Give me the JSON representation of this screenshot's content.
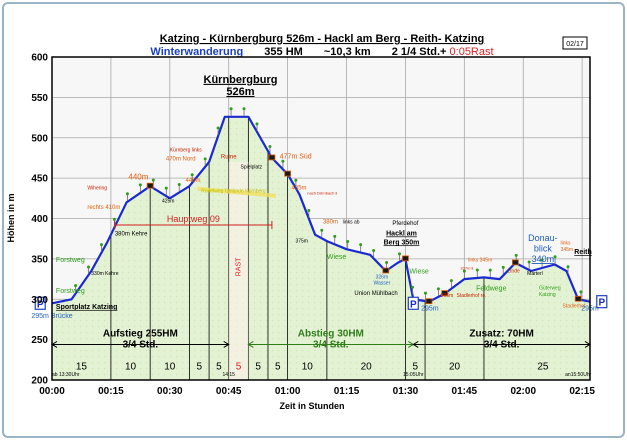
{
  "chart_data": {
    "type": "area",
    "title": "Katzing - Kürnbergburg  526m  - Hackl  am Berg  - Reith- Katzing",
    "subtitle": {
      "name": "Winterwanderung",
      "hm": "355 HM",
      "distance": "~10,3 km",
      "duration": "2  1/4 Std.+",
      "rest": " 0:05Rast"
    },
    "badge": "02/17",
    "ylabel": "Höhen in m",
    "xlabel": "Zeit in  Stunden",
    "ylim": [
      200,
      600
    ],
    "xlim_minutes": [
      0,
      137
    ],
    "y_ticks": [
      200,
      250,
      300,
      350,
      400,
      450,
      500,
      550,
      600
    ],
    "x_ticks": [
      {
        "min": 0,
        "label": "00:00"
      },
      {
        "min": 15,
        "label": "00:15"
      },
      {
        "min": 30,
        "label": "00:30"
      },
      {
        "min": 45,
        "label": "00:45"
      },
      {
        "min": 60,
        "label": "01:00"
      },
      {
        "min": 75,
        "label": "01:15"
      },
      {
        "min": 90,
        "label": "01:30"
      },
      {
        "min": 105,
        "label": "01:45"
      },
      {
        "min": 120,
        "label": "02:00"
      },
      {
        "min": 135,
        "label": "02:15"
      }
    ],
    "profile": [
      {
        "t": 0,
        "h": 295
      },
      {
        "t": 5,
        "h": 300
      },
      {
        "t": 10,
        "h": 335
      },
      {
        "t": 14,
        "h": 370
      },
      {
        "t": 19,
        "h": 420
      },
      {
        "t": 25,
        "h": 440
      },
      {
        "t": 30,
        "h": 425
      },
      {
        "t": 35,
        "h": 440
      },
      {
        "t": 40,
        "h": 470
      },
      {
        "t": 44,
        "h": 526
      },
      {
        "t": 50,
        "h": 526
      },
      {
        "t": 56,
        "h": 475
      },
      {
        "t": 60,
        "h": 455
      },
      {
        "t": 63,
        "h": 430
      },
      {
        "t": 67,
        "h": 380
      },
      {
        "t": 70,
        "h": 372
      },
      {
        "t": 75,
        "h": 362
      },
      {
        "t": 81,
        "h": 355
      },
      {
        "t": 85,
        "h": 335
      },
      {
        "t": 88,
        "h": 345
      },
      {
        "t": 90,
        "h": 350
      },
      {
        "t": 92,
        "h": 300
      },
      {
        "t": 96,
        "h": 297
      },
      {
        "t": 100,
        "h": 307
      },
      {
        "t": 105,
        "h": 325
      },
      {
        "t": 110,
        "h": 327
      },
      {
        "t": 114,
        "h": 325
      },
      {
        "t": 118,
        "h": 345
      },
      {
        "t": 122,
        "h": 335
      },
      {
        "t": 128,
        "h": 343
      },
      {
        "t": 131,
        "h": 335
      },
      {
        "t": 134,
        "h": 300
      },
      {
        "t": 137,
        "h": 297
      }
    ],
    "segment_dividers": [
      0,
      15,
      25,
      35,
      40,
      45,
      50,
      55,
      60,
      70,
      90,
      95,
      110,
      137
    ],
    "segment_durations": [
      {
        "t": 7.5,
        "label": "15",
        "rest": false
      },
      {
        "t": 20,
        "label": "10",
        "rest": false
      },
      {
        "t": 30,
        "label": "10",
        "rest": false
      },
      {
        "t": 37.5,
        "label": "5",
        "rest": false
      },
      {
        "t": 42.5,
        "label": "5",
        "rest": false
      },
      {
        "t": 47.5,
        "label": "5",
        "rest": true
      },
      {
        "t": 52.5,
        "label": "5",
        "rest": false
      },
      {
        "t": 57.5,
        "label": "5",
        "rest": false
      },
      {
        "t": 65,
        "label": "10",
        "rest": false
      },
      {
        "t": 80,
        "label": "20",
        "rest": false
      },
      {
        "t": 92.5,
        "label": "5",
        "rest": false
      },
      {
        "t": 102.5,
        "label": "20",
        "rest": false
      },
      {
        "t": 125,
        "label": "25",
        "rest": false
      }
    ],
    "phases": [
      {
        "start": 0,
        "end": 45,
        "label": "Aufstieg 255HM",
        "sub": "3/4 Std.",
        "color": "#000000"
      },
      {
        "start": 50,
        "end": 92,
        "label": "Abstieg 30HM",
        "sub": "3/4 Std.",
        "color": "#2e7d1a"
      },
      {
        "start": 92,
        "end": 137,
        "label": "Zusatz: 70HM",
        "sub": "3/4 Std.",
        "color": "#000000"
      }
    ],
    "hauptweg": {
      "start": 16,
      "end": 56,
      "h": 392,
      "label": "Hauptweg 09"
    },
    "annotations": [
      {
        "t": 48,
        "h": 568,
        "text": "Kürnbergburg",
        "color": "#000000",
        "size": 11,
        "weight": "bold",
        "anchor": "middle",
        "underline": true
      },
      {
        "t": 48,
        "h": 553,
        "text": "526m",
        "color": "#000000",
        "size": 11,
        "weight": "bold",
        "anchor": "middle",
        "underline": true
      },
      {
        "t": 22,
        "h": 448,
        "text": "440m",
        "color": "#e06010",
        "size": 8,
        "weight": "normal",
        "anchor": "middle"
      },
      {
        "t": 9,
        "h": 436,
        "text": "Wihering",
        "color": "#cc2200",
        "size": 5,
        "weight": "normal",
        "anchor": "start"
      },
      {
        "t": 9,
        "h": 412,
        "text": "rechts 410m",
        "color": "#e06010",
        "size": 6,
        "weight": "normal",
        "anchor": "start"
      },
      {
        "t": 16,
        "h": 379,
        "text": "380m Kehre",
        "color": "#000000",
        "size": 6,
        "weight": "normal",
        "anchor": "start"
      },
      {
        "t": 10,
        "h": 330,
        "text": "330m Kehre",
        "color": "#000000",
        "size": 5,
        "weight": "normal",
        "anchor": "start"
      },
      {
        "t": 28,
        "h": 420,
        "text": "425m",
        "color": "#000000",
        "size": 5,
        "weight": "normal",
        "anchor": "start"
      },
      {
        "t": 34,
        "h": 445,
        "text": "440m",
        "color": "#e06010",
        "size": 6,
        "weight": "normal",
        "anchor": "start"
      },
      {
        "t": 30,
        "h": 483,
        "text": "Kürnberg links",
        "color": "#cc2200",
        "size": 5,
        "weight": "normal",
        "anchor": "start"
      },
      {
        "t": 29,
        "h": 472,
        "text": "470m Nord",
        "color": "#e06010",
        "size": 6,
        "weight": "normal",
        "anchor": "start"
      },
      {
        "t": 45,
        "h": 474,
        "text": "Ruine",
        "color": "#cc2200",
        "size": 6,
        "weight": "normal",
        "anchor": "middle"
      },
      {
        "t": 48,
        "h": 462,
        "text": "Spielplatz",
        "color": "#000000",
        "size": 5,
        "weight": "normal",
        "anchor": "start"
      },
      {
        "t": 58,
        "h": 474,
        "text": "477m Süd",
        "color": "#e06010",
        "size": 7,
        "weight": "normal",
        "anchor": "start"
      },
      {
        "t": 38,
        "h": 432,
        "text": "Rodelweg Gelände Kürnberg",
        "color": "#c0c000",
        "size": 5,
        "weight": "normal",
        "anchor": "start"
      },
      {
        "t": 61,
        "h": 436,
        "text": "435m",
        "color": "#e06010",
        "size": 6,
        "weight": "normal",
        "anchor": "start"
      },
      {
        "t": 65,
        "h": 430,
        "text": "nach Dörnbach li",
        "color": "#cc2200",
        "size": 4,
        "weight": "normal",
        "anchor": "start"
      },
      {
        "t": 62,
        "h": 370,
        "text": "375m",
        "color": "#000000",
        "size": 5,
        "weight": "normal",
        "anchor": "start"
      },
      {
        "t": 69,
        "h": 394,
        "text": "380m",
        "color": "#e06010",
        "size": 6,
        "weight": "normal",
        "anchor": "start"
      },
      {
        "t": 74,
        "h": 394,
        "text": "links ab",
        "color": "#000000",
        "size": 5,
        "weight": "normal",
        "anchor": "start"
      },
      {
        "t": 70,
        "h": 350,
        "text": "Wiese",
        "color": "#2e9e1a",
        "size": 7,
        "weight": "normal",
        "anchor": "start"
      },
      {
        "t": 90,
        "h": 392,
        "text": "Pferdehof",
        "color": "#000000",
        "size": 6,
        "weight": "normal",
        "anchor": "middle"
      },
      {
        "t": 89,
        "h": 379,
        "text": "Hackl am",
        "color": "#000000",
        "size": 7,
        "weight": "bold",
        "anchor": "middle",
        "underline": true
      },
      {
        "t": 89,
        "h": 368,
        "text": "Berg 350m",
        "color": "#000000",
        "size": 7,
        "weight": "bold",
        "anchor": "middle",
        "underline": true
      },
      {
        "t": 84,
        "h": 326,
        "text": "326m",
        "color": "#2060c0",
        "size": 5,
        "weight": "normal",
        "anchor": "middle"
      },
      {
        "t": 84,
        "h": 318,
        "text": "Wasser",
        "color": "#2060c0",
        "size": 5,
        "weight": "normal",
        "anchor": "middle"
      },
      {
        "t": 91,
        "h": 332,
        "text": "Wiese",
        "color": "#2e9e1a",
        "size": 7,
        "weight": "normal",
        "anchor": "start"
      },
      {
        "t": 77,
        "h": 305,
        "text": "Union Mühlbach",
        "color": "#000000",
        "size": 6,
        "weight": "normal",
        "anchor": "start"
      },
      {
        "t": 99,
        "h": 303,
        "text": "305m",
        "color": "#cc2200",
        "size": 5,
        "weight": "normal",
        "anchor": "start"
      },
      {
        "t": 103,
        "h": 303,
        "text": "Stadlerhof re.",
        "color": "#cc2200",
        "size": 5,
        "weight": "normal",
        "anchor": "start"
      },
      {
        "t": 106,
        "h": 347,
        "text": "links 345m",
        "color": "#e06010",
        "size": 5,
        "weight": "normal",
        "anchor": "start"
      },
      {
        "t": 104,
        "h": 337,
        "text": "337m li.",
        "color": "#cc2200",
        "size": 4,
        "weight": "normal",
        "anchor": "start"
      },
      {
        "t": 108,
        "h": 311,
        "text": "Feldwege",
        "color": "#2e9e1a",
        "size": 7,
        "weight": "normal",
        "anchor": "start"
      },
      {
        "t": 116,
        "h": 333,
        "text": "Linde",
        "color": "#cc2200",
        "size": 5,
        "weight": "normal",
        "anchor": "start"
      },
      {
        "t": 121,
        "h": 330,
        "text": "Marterl",
        "color": "#000000",
        "size": 5,
        "weight": "normal",
        "anchor": "start"
      },
      {
        "t": 125,
        "h": 372,
        "text": "Donau-",
        "color": "#2060c0",
        "size": 9,
        "weight": "normal",
        "anchor": "middle"
      },
      {
        "t": 125,
        "h": 359,
        "text": "blick",
        "color": "#2060c0",
        "size": 9,
        "weight": "normal",
        "anchor": "middle"
      },
      {
        "t": 125,
        "h": 346,
        "text": "340m",
        "color": "#2060c0",
        "size": 9,
        "weight": "normal",
        "anchor": "middle",
        "underline": true
      },
      {
        "t": 129.5,
        "h": 368,
        "text": "links",
        "color": "#e06010",
        "size": 5,
        "weight": "normal",
        "anchor": "start"
      },
      {
        "t": 129.5,
        "h": 360,
        "text": "345m",
        "color": "#e06010",
        "size": 5,
        "weight": "normal",
        "anchor": "start"
      },
      {
        "t": 133,
        "h": 356,
        "text": "Reith",
        "color": "#000000",
        "size": 7,
        "weight": "bold",
        "anchor": "start",
        "underline": true
      },
      {
        "t": 124,
        "h": 312,
        "text": "Güterweg",
        "color": "#2e9e1a",
        "size": 5,
        "weight": "normal",
        "anchor": "start"
      },
      {
        "t": 124,
        "h": 304,
        "text": "Katzing",
        "color": "#2e9e1a",
        "size": 5,
        "weight": "normal",
        "anchor": "start"
      },
      {
        "t": 130,
        "h": 290,
        "text": "Stadlerhof",
        "color": "#e06010",
        "size": 5,
        "weight": "normal",
        "anchor": "start"
      },
      {
        "t": 1,
        "h": 308,
        "text": "Forstweg",
        "color": "#2e9e1a",
        "size": 7,
        "weight": "normal",
        "anchor": "start"
      },
      {
        "t": 1,
        "h": 346,
        "text": "Forstweg",
        "color": "#2e9e1a",
        "size": 7,
        "weight": "normal",
        "anchor": "start"
      },
      {
        "t": 1,
        "h": 288,
        "text": "Sportplatz Katzing",
        "color": "#000000",
        "size": 7,
        "weight": "bold",
        "anchor": "start",
        "underline": true
      },
      {
        "t": 0,
        "h": 277,
        "text": "295m Brücke",
        "color": "#2060c0",
        "size": 7,
        "weight": "normal",
        "anchor": "middle"
      },
      {
        "t": 94,
        "h": 286,
        "text": "295m",
        "color": "#2060c0",
        "size": 7,
        "weight": "normal",
        "anchor": "start"
      },
      {
        "t": 137,
        "h": 286,
        "text": "295m",
        "color": "#2060c0",
        "size": 7,
        "weight": "normal",
        "anchor": "middle"
      },
      {
        "t": 0,
        "h": 205,
        "text": "ab 13:30Uhr",
        "color": "#000000",
        "size": 5,
        "weight": "normal",
        "anchor": "start"
      },
      {
        "t": 45,
        "h": 205,
        "text": "14:15",
        "color": "#000000",
        "size": 5,
        "weight": "normal",
        "anchor": "middle"
      },
      {
        "t": 92,
        "h": 205,
        "text": "15:05Uhr",
        "color": "#000000",
        "size": 5,
        "weight": "normal",
        "anchor": "middle"
      },
      {
        "t": 134,
        "h": 205,
        "text": "an15:50Uhr",
        "color": "#000000",
        "size": 5,
        "weight": "normal",
        "anchor": "middle"
      }
    ],
    "parking": [
      {
        "t": -3,
        "h": 295,
        "label": "P"
      },
      {
        "t": 92,
        "h": 295,
        "label": "P"
      },
      {
        "t": 140,
        "h": 297,
        "label": "P"
      }
    ],
    "rast_label": "RAST"
  }
}
